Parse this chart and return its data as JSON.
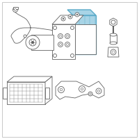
{
  "bg_color": "#ffffff",
  "border_color": "#c8c8c8",
  "line_color": "#606060",
  "highlight_fill": "#a8d4e6",
  "highlight_stroke": "#5aaac8",
  "fig_size": [
    2.0,
    2.0
  ],
  "dpi": 100
}
